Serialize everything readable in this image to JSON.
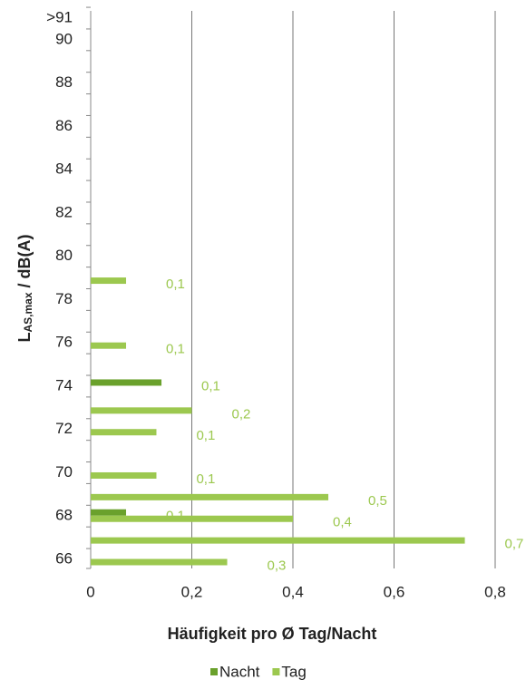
{
  "chart_data": {
    "type": "bar",
    "orientation": "horizontal",
    "x_label": "Häufigkeit pro Ø Tag/Nacht",
    "y_label": [
      "L",
      "AS,max",
      " / dB(A)"
    ],
    "categories": [
      "66",
      null,
      "68",
      null,
      "70",
      null,
      "72",
      null,
      "74",
      null,
      "76",
      null,
      "78",
      null,
      "80",
      null,
      "82",
      null,
      "84",
      null,
      "86",
      null,
      "88",
      null,
      "90",
      ">91"
    ],
    "series": [
      {
        "name": "Nacht",
        "color": "#6aa12c",
        "values": [
          null,
          null,
          0.07,
          null,
          null,
          null,
          null,
          null,
          0.14,
          null,
          null,
          null,
          null,
          null,
          null,
          null,
          null,
          null,
          null,
          null,
          null,
          null,
          null,
          null,
          null,
          null
        ],
        "value_labels": [
          null,
          null,
          "0,1",
          null,
          null,
          null,
          null,
          null,
          "0,1",
          null,
          null,
          null,
          null,
          null,
          null,
          null,
          null,
          null,
          null,
          null,
          null,
          null,
          null,
          null,
          null,
          null
        ]
      },
      {
        "name": "Tag",
        "color": "#9cc84f",
        "values": [
          0.27,
          0.74,
          0.4,
          0.47,
          0.13,
          null,
          0.13,
          0.2,
          null,
          null,
          0.07,
          null,
          null,
          0.07,
          null,
          null,
          null,
          null,
          null,
          null,
          null,
          null,
          null,
          null,
          null,
          null
        ],
        "value_labels": [
          "0,3",
          "0,7",
          "0,4",
          "0,5",
          "0,1",
          null,
          "0,1",
          "0,2",
          null,
          null,
          "0,1",
          null,
          null,
          "0,1",
          null,
          null,
          null,
          null,
          null,
          null,
          null,
          null,
          null,
          null,
          null,
          null
        ]
      }
    ],
    "xlim": [
      0,
      0.8
    ],
    "xticks": [
      0,
      {
        "value": 0.2,
        "label": "0,2"
      },
      {
        "value": 0.4,
        "label": "0,4"
      },
      {
        "value": 0.6,
        "label": "0,6"
      },
      {
        "value": 0.8,
        "label": "0,8"
      }
    ],
    "grid": true,
    "legend": "bottom"
  }
}
